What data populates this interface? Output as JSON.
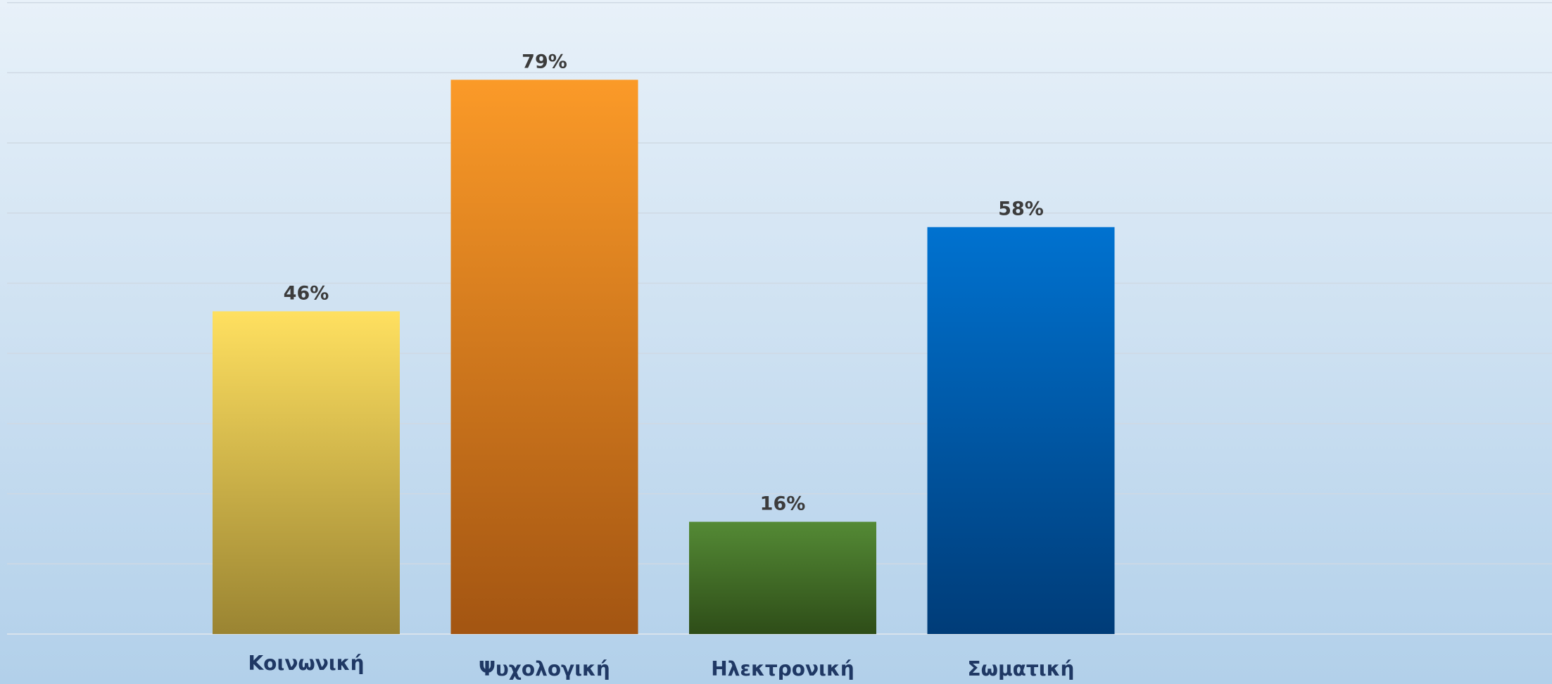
{
  "chart_data": {
    "type": "bar",
    "title": "",
    "xlabel": "",
    "ylabel": "",
    "ylim": [
      0,
      90
    ],
    "grid": true,
    "legend": "none",
    "categories": [
      "Κοινωνική",
      "Ψυχολογική",
      "Ηλεκτρονική",
      "Σωματική"
    ],
    "values": [
      46,
      79,
      16,
      58
    ],
    "value_labels": [
      "46%",
      "79%",
      "16%",
      "58%"
    ],
    "bar_colors": [
      {
        "top": "#ffe060",
        "bottom": "#9a8432"
      },
      {
        "top": "#fb9a28",
        "bottom": "#a35512"
      },
      {
        "top": "#548a35",
        "bottom": "#2e4d18"
      },
      {
        "top": "#0072d0",
        "bottom": "#003c78"
      }
    ],
    "background": {
      "top": "#e8f1f9",
      "bottom": "#b2d0ea"
    },
    "label_color": "#1f3864",
    "value_label_color": "#3c3c3c",
    "grid_color": "#cfd9e4"
  }
}
